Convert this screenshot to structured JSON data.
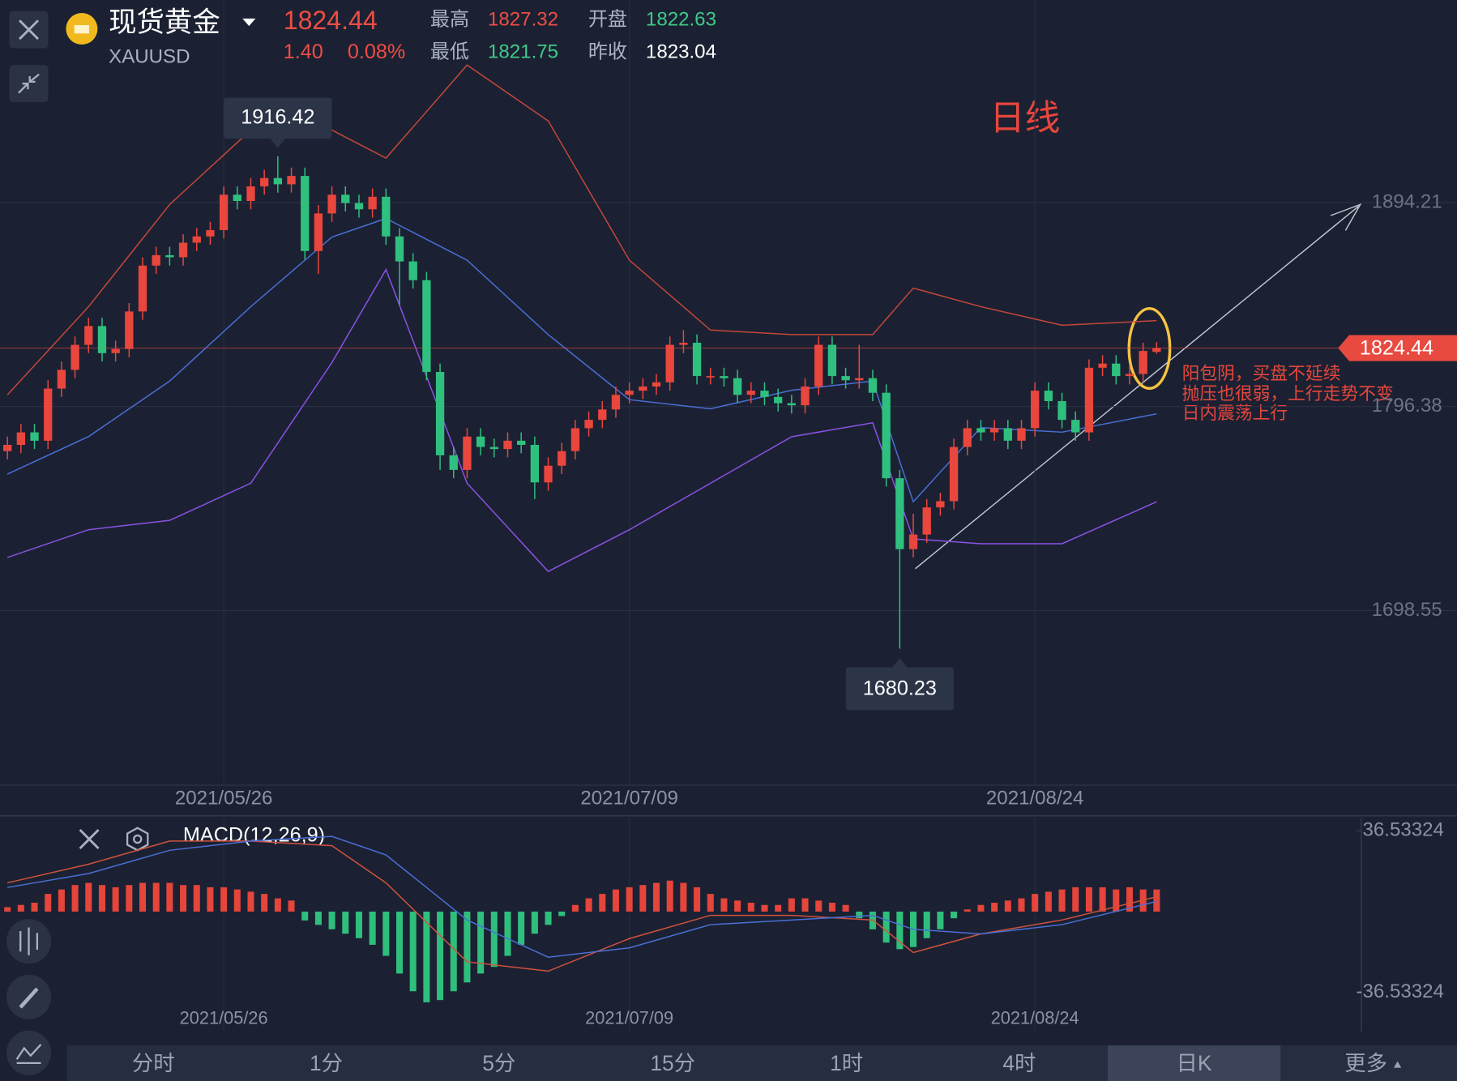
{
  "header": {
    "name": "现货黄金",
    "symbol": "XAUUSD",
    "change": "1.40",
    "change_pct": "0.08%",
    "labels": [
      "最高",
      "开盘",
      "最低",
      "昨收"
    ]
  },
  "tabs": [
    "分时",
    "1分",
    "5分",
    "15分",
    "1时",
    "4时",
    "日K",
    "更多"
  ],
  "chart_data": [
    {
      "type": "candlestick",
      "categories": [
        null,
        null,
        null,
        null,
        null,
        null,
        null,
        null,
        null,
        null,
        null,
        null,
        null,
        null,
        null,
        null,
        "2021/05/26",
        null,
        null,
        null,
        null,
        null,
        null,
        null,
        null,
        null,
        null,
        null,
        null,
        null,
        null,
        null,
        null,
        null,
        null,
        null,
        null,
        null,
        null,
        null,
        null,
        null,
        null,
        null,
        null,
        null,
        "2021/07/09",
        null,
        null,
        null,
        null,
        null,
        null,
        null,
        null,
        null,
        null,
        null,
        null,
        null,
        null,
        null,
        null,
        null,
        null,
        null,
        null,
        null,
        null,
        null,
        null,
        null,
        null,
        null,
        null,
        null,
        "2021/08/24",
        null,
        null,
        null,
        null,
        null,
        null,
        null,
        null,
        null
      ],
      "open": [
        1775,
        1778,
        1784,
        1780,
        1805,
        1814,
        1826,
        1835,
        1822,
        1824,
        1842,
        1864,
        1869,
        1868,
        1875,
        1878,
        1881,
        1898,
        1895,
        1902,
        1906,
        1903,
        1907,
        1871,
        1889,
        1898,
        1894,
        1891,
        1897,
        1878,
        1866,
        1857,
        1813,
        1773,
        1766,
        1782,
        1777,
        1776,
        1780,
        1778,
        1760,
        1768,
        1775,
        1786,
        1790,
        1795,
        1802,
        1804,
        1806,
        1808,
        1826,
        1827,
        1811,
        1811,
        1810,
        1802,
        1804,
        1801,
        1798,
        1797,
        1806,
        1826,
        1811,
        1809,
        1810,
        1803,
        1762,
        1728,
        1735,
        1748,
        1751,
        1777,
        1786,
        1784,
        1786,
        1780,
        1786,
        1804,
        1799,
        1790,
        1784,
        1815,
        1817,
        1811,
        1812,
        1822.63
      ],
      "high": [
        1782,
        1788,
        1788,
        1809,
        1818,
        1830,
        1839,
        1839,
        1828,
        1846,
        1868,
        1873,
        1873,
        1879,
        1882,
        1885,
        1902,
        1902,
        1906,
        1910,
        1916.42,
        1911,
        1911,
        1893,
        1902,
        1902,
        1898,
        1901,
        1901,
        1882,
        1870,
        1861,
        1817,
        1777,
        1786,
        1786,
        1781,
        1784,
        1784,
        1782,
        1772,
        1779,
        1790,
        1794,
        1799,
        1806,
        1808,
        1810,
        1812,
        1830,
        1833,
        1831,
        1815,
        1815,
        1814,
        1808,
        1808,
        1805,
        1802,
        1810,
        1830,
        1830,
        1815,
        1826,
        1814,
        1807,
        1766,
        1745,
        1752,
        1755,
        1781,
        1790,
        1790,
        1790,
        1790,
        1790,
        1808,
        1808,
        1803,
        1794,
        1819,
        1821,
        1821,
        1816,
        1827,
        1827.32
      ],
      "low": [
        1771,
        1774,
        1776,
        1776,
        1801,
        1810,
        1822,
        1818,
        1818,
        1820,
        1838,
        1860,
        1864,
        1864,
        1871,
        1874,
        1877,
        1891,
        1891,
        1898,
        1899,
        1899,
        1867,
        1860,
        1885,
        1890,
        1887,
        1887,
        1874,
        1845,
        1853,
        1809,
        1766,
        1762,
        1762,
        1773,
        1772,
        1772,
        1774,
        1752,
        1756,
        1764,
        1771,
        1782,
        1786,
        1791,
        1798,
        1800,
        1802,
        1804,
        1822,
        1807,
        1807,
        1806,
        1798,
        1798,
        1797,
        1794,
        1793,
        1793,
        1802,
        1807,
        1805,
        1805,
        1799,
        1758,
        1680.23,
        1724,
        1731,
        1744,
        1747,
        1773,
        1780,
        1780,
        1776,
        1776,
        1782,
        1795,
        1786,
        1780,
        1780,
        1811,
        1807,
        1807,
        1808,
        1821.75
      ],
      "close": [
        1778,
        1784,
        1780,
        1805,
        1814,
        1826,
        1835,
        1822,
        1824,
        1842,
        1864,
        1869,
        1868,
        1875,
        1878,
        1881,
        1898,
        1895,
        1902,
        1906,
        1903,
        1907,
        1871,
        1889,
        1898,
        1894,
        1891,
        1897,
        1878,
        1866,
        1857,
        1813,
        1773,
        1766,
        1782,
        1777,
        1776,
        1780,
        1778,
        1760,
        1768,
        1775,
        1786,
        1790,
        1795,
        1802,
        1804,
        1806,
        1808,
        1826,
        1827,
        1811,
        1811,
        1810,
        1802,
        1804,
        1801,
        1798,
        1797,
        1806,
        1826,
        1811,
        1809,
        1810,
        1803,
        1762,
        1728,
        1735,
        1748,
        1751,
        1777,
        1786,
        1784,
        1786,
        1780,
        1786,
        1804,
        1799,
        1790,
        1784,
        1815,
        1817,
        1811,
        1812,
        1823.04,
        1824.44
      ],
      "up_color": "#e9463d",
      "down_color": "#2fc07f",
      "band_index": [
        0,
        6,
        12,
        18,
        24,
        28,
        34,
        40,
        46,
        52,
        58,
        64,
        67,
        72,
        78,
        85
      ],
      "bands": [
        {
          "color": "#c4473a",
          "values": [
            1802,
            1844.3,
            1893.3,
            1929,
            1929,
            1915.6,
            1960.2,
            1933.4,
            1866.6,
            1833.1,
            1830.9,
            1830.9,
            1853.2,
            1844.3,
            1835.4,
            1837.6
          ]
        },
        {
          "color": "#4a6fd6",
          "values": [
            1764,
            1782,
            1808.6,
            1844.3,
            1877.7,
            1886.6,
            1866.6,
            1830.9,
            1799.7,
            1795.3,
            1804.2,
            1808.6,
            1750.7,
            1786.3,
            1784.1,
            1792.9
          ]
        },
        {
          "color": "#8a52e6",
          "values": [
            1724,
            1737.3,
            1741.8,
            1759.6,
            1817.5,
            1862.1,
            1759.6,
            1717.3,
            1737.3,
            1759.6,
            1781.9,
            1788.6,
            1732.9,
            1730.6,
            1730.6,
            1750.7
          ]
        }
      ],
      "ylim": [
        1614.75,
        1991.4
      ],
      "yticks": [
        1894.21,
        1796.38,
        1698.55
      ],
      "annotations": [
        "日线",
        "阳包阴，买盘不延续",
        "抛压也很弱，上行走势不变",
        "日内震荡上行"
      ]
    },
    {
      "type": "macd",
      "title": "MACD(12,26,9)",
      "histogram": [
        2,
        3,
        4,
        8,
        10,
        12,
        13,
        12,
        11,
        12,
        13,
        13,
        13,
        12,
        12,
        11,
        11,
        10,
        9,
        8,
        6,
        5,
        -4,
        -6,
        -8,
        -10,
        -12,
        -15,
        -20,
        -28,
        -36,
        -41,
        -40,
        -36,
        -32,
        -28,
        -25,
        -20,
        -15,
        -10,
        -6,
        -2,
        3,
        6,
        8,
        10,
        11,
        12,
        13,
        14,
        13,
        11,
        8,
        6,
        5,
        4,
        3,
        3,
        6,
        6,
        5,
        4,
        3,
        -3,
        -8,
        -14,
        -17,
        -16,
        -12,
        -8,
        -3,
        1,
        3,
        4,
        5,
        6,
        8,
        9,
        10,
        11,
        11,
        11,
        10,
        11,
        10,
        10
      ],
      "line_index": [
        0,
        6,
        12,
        18,
        24,
        28,
        34,
        40,
        46,
        52,
        58,
        64,
        67,
        72,
        78,
        85
      ],
      "series": [
        {
          "color": "#d0523d",
          "values": [
            13,
            21.4,
            31.9,
            31.9,
            29.8,
            13,
            -22.7,
            -26.9,
            -12.2,
            -1.7,
            -1.7,
            -3.8,
            -18.5,
            -10.1,
            -3.8,
            6.7
          ]
        },
        {
          "color": "#4a6fd6",
          "values": [
            10.9,
            17.2,
            27.7,
            31.9,
            34,
            25.6,
            -3.8,
            -20.6,
            -16.4,
            -5.9,
            -3.8,
            -1.7,
            -8,
            -10.1,
            -5.9,
            4.6
          ]
        }
      ],
      "ylim": [
        -60.48,
        42.42
      ],
      "yticks": [
        36.53324,
        -36.53324
      ]
    }
  ]
}
